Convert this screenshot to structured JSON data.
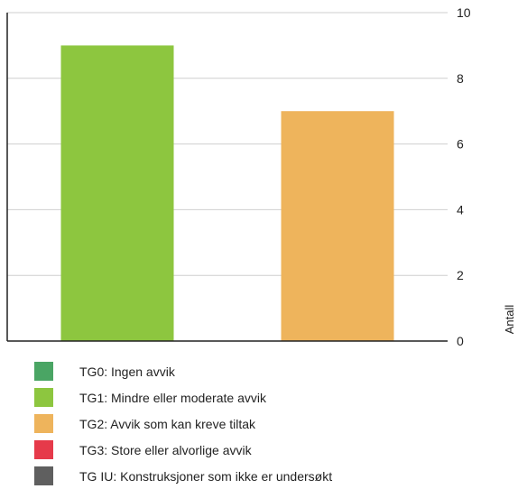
{
  "chart_data": {
    "type": "bar",
    "categories": [
      "TG1: Mindre eller moderate avvik",
      "TG2: Avvik som kan kreve tiltak"
    ],
    "values": [
      9,
      7
    ],
    "bar_colors": [
      "#8dc63f",
      "#eeb45c"
    ],
    "ylabel": "Antall",
    "ylim": [
      0,
      10
    ],
    "yticks": [
      0,
      2,
      4,
      6,
      8,
      10
    ],
    "y_axis_side": "right",
    "grid": true,
    "legend_position": "bottom",
    "legend": [
      {
        "label": "TG0: Ingen avvik",
        "color": "#4aa564"
      },
      {
        "label": "TG1: Mindre eller moderate avvik",
        "color": "#8dc63f"
      },
      {
        "label": "TG2: Avvik som kan kreve tiltak",
        "color": "#eeb45c"
      },
      {
        "label": "TG3: Store eller alvorlige avvik",
        "color": "#e63a4a"
      },
      {
        "label": "TG IU: Konstruksjoner som ikke er undersøkt",
        "color": "#5f5f5f"
      }
    ]
  }
}
